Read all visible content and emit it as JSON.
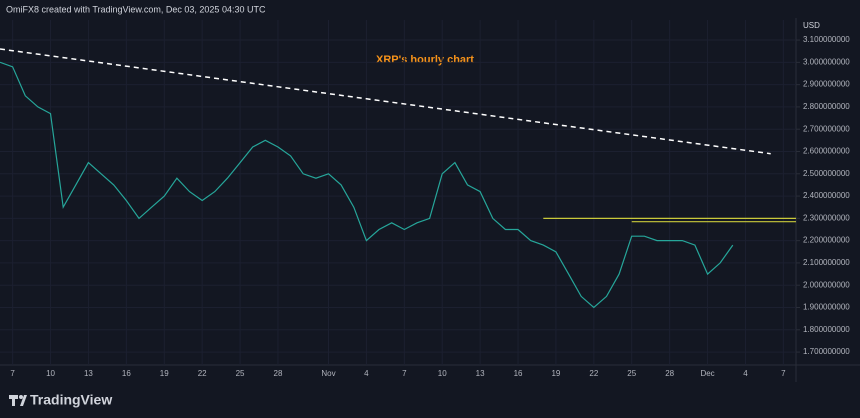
{
  "header": "OmiFX8 created with TradingView.com, Dec 03, 2025 04:30 UTC",
  "brand": "TradingView",
  "chart_data": {
    "type": "line",
    "annotation": "XRP's hourly chart",
    "y_label": "USD",
    "grid": true,
    "xlim": [
      "2025-10-06",
      "2025-12-08"
    ],
    "xticks": [
      {
        "value": "2025-10-07",
        "label": "7"
      },
      {
        "value": "2025-10-10",
        "label": "10"
      },
      {
        "value": "2025-10-13",
        "label": "13"
      },
      {
        "value": "2025-10-16",
        "label": "16"
      },
      {
        "value": "2025-10-19",
        "label": "19"
      },
      {
        "value": "2025-10-22",
        "label": "22"
      },
      {
        "value": "2025-10-25",
        "label": "25"
      },
      {
        "value": "2025-10-28",
        "label": "28"
      },
      {
        "value": "2025-11-01",
        "label": "Nov"
      },
      {
        "value": "2025-11-04",
        "label": "4"
      },
      {
        "value": "2025-11-07",
        "label": "7"
      },
      {
        "value": "2025-11-10",
        "label": "10"
      },
      {
        "value": "2025-11-13",
        "label": "13"
      },
      {
        "value": "2025-11-16",
        "label": "16"
      },
      {
        "value": "2025-11-19",
        "label": "19"
      },
      {
        "value": "2025-11-22",
        "label": "22"
      },
      {
        "value": "2025-11-25",
        "label": "25"
      },
      {
        "value": "2025-11-28",
        "label": "28"
      },
      {
        "value": "2025-12-01",
        "label": "Dec"
      },
      {
        "value": "2025-12-04",
        "label": "4"
      },
      {
        "value": "2025-12-07",
        "label": "7"
      }
    ],
    "ylim": [
      1.642,
      3.19
    ],
    "yticks": [
      {
        "value": 1.7,
        "label": "1.700000000"
      },
      {
        "value": 1.8,
        "label": "1.800000000"
      },
      {
        "value": 1.9,
        "label": "1.900000000"
      },
      {
        "value": 2.0,
        "label": "2.000000000"
      },
      {
        "value": 2.1,
        "label": "2.100000000"
      },
      {
        "value": 2.2,
        "label": "2.200000000"
      },
      {
        "value": 2.3,
        "label": "2.300000000"
      },
      {
        "value": 2.4,
        "label": "2.400000000"
      },
      {
        "value": 2.5,
        "label": "2.500000000"
      },
      {
        "value": 2.6,
        "label": "2.600000000"
      },
      {
        "value": 2.7,
        "label": "2.700000000"
      },
      {
        "value": 2.8,
        "label": "2.800000000"
      },
      {
        "value": 2.9,
        "label": "2.900000000"
      },
      {
        "value": 3.0,
        "label": "3.000000000"
      },
      {
        "value": 3.1,
        "label": "3.100000000"
      }
    ],
    "series": [
      {
        "color": "#26a69a",
        "style": "solid",
        "x": [
          "2025-10-06",
          "2025-10-07",
          "2025-10-08",
          "2025-10-09",
          "2025-10-10",
          "2025-10-11",
          "2025-10-12",
          "2025-10-13",
          "2025-10-14",
          "2025-10-15",
          "2025-10-16",
          "2025-10-17",
          "2025-10-18",
          "2025-10-19",
          "2025-10-20",
          "2025-10-21",
          "2025-10-22",
          "2025-10-23",
          "2025-10-24",
          "2025-10-25",
          "2025-10-26",
          "2025-10-27",
          "2025-10-28",
          "2025-10-29",
          "2025-10-30",
          "2025-10-31",
          "2025-11-01",
          "2025-11-02",
          "2025-11-03",
          "2025-11-04",
          "2025-11-05",
          "2025-11-06",
          "2025-11-07",
          "2025-11-08",
          "2025-11-09",
          "2025-11-10",
          "2025-11-11",
          "2025-11-12",
          "2025-11-13",
          "2025-11-14",
          "2025-11-15",
          "2025-11-16",
          "2025-11-17",
          "2025-11-18",
          "2025-11-19",
          "2025-11-20",
          "2025-11-21",
          "2025-11-22",
          "2025-11-23",
          "2025-11-24",
          "2025-11-25",
          "2025-11-26",
          "2025-11-27",
          "2025-11-28",
          "2025-11-29",
          "2025-11-30",
          "2025-12-01",
          "2025-12-02",
          "2025-12-03"
        ],
        "values": [
          3.0,
          2.98,
          2.85,
          2.8,
          2.77,
          2.35,
          2.45,
          2.55,
          2.5,
          2.45,
          2.38,
          2.3,
          2.35,
          2.4,
          2.48,
          2.42,
          2.38,
          2.42,
          2.48,
          2.55,
          2.62,
          2.65,
          2.62,
          2.58,
          2.5,
          2.48,
          2.5,
          2.45,
          2.35,
          2.2,
          2.25,
          2.28,
          2.25,
          2.28,
          2.3,
          2.5,
          2.55,
          2.45,
          2.42,
          2.3,
          2.25,
          2.25,
          2.2,
          2.18,
          2.15,
          2.05,
          1.95,
          1.9,
          1.95,
          2.05,
          2.22,
          2.22,
          2.2,
          2.2,
          2.2,
          2.18,
          2.05,
          2.1,
          2.18
        ]
      },
      {
        "color": "#ffffff",
        "style": "dashed",
        "x": [
          "2025-10-06",
          "2025-12-06"
        ],
        "values": [
          3.06,
          2.59
        ]
      },
      {
        "color": "#c9c93a",
        "style": "solid",
        "x": [
          "2025-11-18",
          "2025-12-08"
        ],
        "values": [
          2.3,
          2.3
        ]
      },
      {
        "color": "#c9c93a",
        "style": "solid",
        "x": [
          "2025-11-25",
          "2025-12-08"
        ],
        "values": [
          2.285,
          2.285
        ]
      }
    ]
  }
}
